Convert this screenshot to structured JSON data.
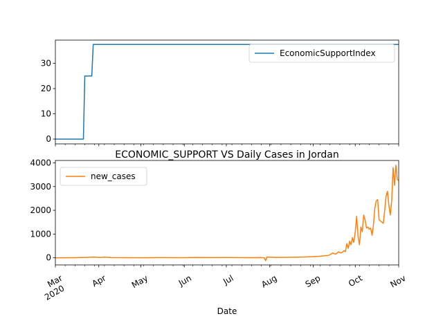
{
  "chart_data": [
    {
      "type": "line",
      "title": "",
      "xlabel": "",
      "ylabel": "",
      "x_range": [
        "2020-03-01",
        "2020-11-01"
      ],
      "ylim": [
        -1.9,
        39.2
      ],
      "yticks": [
        0,
        10,
        20,
        30
      ],
      "legend": "top-right",
      "grid": false,
      "series": [
        {
          "name": "EconomicSupportIndex",
          "color": "#1f77b4",
          "points": [
            [
              "2020-03-01",
              0
            ],
            [
              "2020-03-21",
              0
            ],
            [
              "2020-03-22",
              25
            ],
            [
              "2020-03-27",
              25
            ],
            [
              "2020-03-28",
              37.5
            ],
            [
              "2020-11-01",
              37.5
            ]
          ]
        }
      ]
    },
    {
      "type": "line",
      "title": "ECONOMIC_SUPPORT VS Daily Cases in Jordan",
      "xlabel": "Date",
      "ylabel": "",
      "x_range": [
        "2020-03-01",
        "2020-11-01"
      ],
      "ylim": [
        -300,
        4100
      ],
      "yticks": [
        0,
        1000,
        2000,
        3000,
        4000
      ],
      "xticks": [
        {
          "date": "2020-03-01",
          "label": "Mar",
          "sublabel": "2020"
        },
        {
          "date": "2020-04-01",
          "label": "Apr"
        },
        {
          "date": "2020-05-01",
          "label": "May"
        },
        {
          "date": "2020-06-01",
          "label": "Jun"
        },
        {
          "date": "2020-07-01",
          "label": "Jul"
        },
        {
          "date": "2020-08-01",
          "label": "Aug"
        },
        {
          "date": "2020-09-01",
          "label": "Sep"
        },
        {
          "date": "2020-10-01",
          "label": "Oct"
        },
        {
          "date": "2020-11-01",
          "label": "Nov"
        }
      ],
      "legend": "top-left",
      "grid": false,
      "series": [
        {
          "name": "new_cases",
          "color": "#ff7f0e",
          "points": [
            [
              "2020-03-01",
              0
            ],
            [
              "2020-03-15",
              5
            ],
            [
              "2020-03-25",
              20
            ],
            [
              "2020-03-28",
              30
            ],
            [
              "2020-04-02",
              15
            ],
            [
              "2020-04-05",
              25
            ],
            [
              "2020-04-10",
              10
            ],
            [
              "2020-04-20",
              5
            ],
            [
              "2020-05-01",
              3
            ],
            [
              "2020-05-15",
              10
            ],
            [
              "2020-06-01",
              5
            ],
            [
              "2020-06-10",
              15
            ],
            [
              "2020-06-20",
              8
            ],
            [
              "2020-07-01",
              12
            ],
            [
              "2020-07-15",
              5
            ],
            [
              "2020-07-25",
              10
            ],
            [
              "2020-07-28",
              2
            ],
            [
              "2020-07-29",
              -120
            ],
            [
              "2020-07-30",
              30
            ],
            [
              "2020-08-05",
              15
            ],
            [
              "2020-08-15",
              20
            ],
            [
              "2020-08-25",
              30
            ],
            [
              "2020-09-01",
              50
            ],
            [
              "2020-09-05",
              60
            ],
            [
              "2020-09-10",
              90
            ],
            [
              "2020-09-12",
              100
            ],
            [
              "2020-09-15",
              200
            ],
            [
              "2020-09-17",
              150
            ],
            [
              "2020-09-19",
              250
            ],
            [
              "2020-09-21",
              200
            ],
            [
              "2020-09-23",
              300
            ],
            [
              "2020-09-24",
              260
            ],
            [
              "2020-09-25",
              600
            ],
            [
              "2020-09-26",
              400
            ],
            [
              "2020-09-27",
              700
            ],
            [
              "2020-09-28",
              550
            ],
            [
              "2020-09-29",
              850
            ],
            [
              "2020-09-30",
              650
            ],
            [
              "2020-10-01",
              1100
            ],
            [
              "2020-10-02",
              1750
            ],
            [
              "2020-10-03",
              900
            ],
            [
              "2020-10-04",
              550
            ],
            [
              "2020-10-05",
              1300
            ],
            [
              "2020-10-06",
              1100
            ],
            [
              "2020-10-07",
              1800
            ],
            [
              "2020-10-08",
              1600
            ],
            [
              "2020-10-09",
              1250
            ],
            [
              "2020-10-10",
              1300
            ],
            [
              "2020-10-11",
              1200
            ],
            [
              "2020-10-12",
              1250
            ],
            [
              "2020-10-13",
              950
            ],
            [
              "2020-10-14",
              1400
            ],
            [
              "2020-10-15",
              2100
            ],
            [
              "2020-10-16",
              2400
            ],
            [
              "2020-10-17",
              2450
            ],
            [
              "2020-10-18",
              1600
            ],
            [
              "2020-10-19",
              1550
            ],
            [
              "2020-10-20",
              1500
            ],
            [
              "2020-10-21",
              1450
            ],
            [
              "2020-10-22",
              2000
            ],
            [
              "2020-10-23",
              2600
            ],
            [
              "2020-10-24",
              2800
            ],
            [
              "2020-10-25",
              2200
            ],
            [
              "2020-10-26",
              1800
            ],
            [
              "2020-10-27",
              2400
            ],
            [
              "2020-10-28",
              3800
            ],
            [
              "2020-10-29",
              3050
            ],
            [
              "2020-10-30",
              3900
            ],
            [
              "2020-10-31",
              3300
            ],
            [
              "2020-11-01",
              3250
            ]
          ]
        }
      ]
    }
  ]
}
